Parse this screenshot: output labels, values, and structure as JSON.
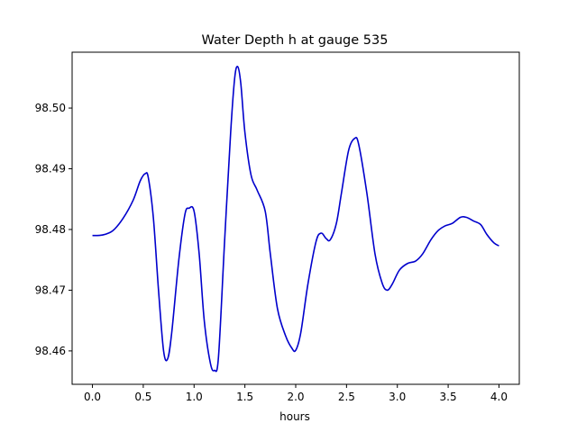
{
  "chart_data": {
    "type": "line",
    "title": "Water Depth h at gauge 535",
    "xlabel": "hours",
    "ylabel": "",
    "xlim": [
      -0.2,
      4.2
    ],
    "ylim": [
      98.4545,
      98.5092
    ],
    "grid": false,
    "legend": "none",
    "x_ticks": [
      {
        "value": 0.0,
        "label": "0.0"
      },
      {
        "value": 0.5,
        "label": "0.5"
      },
      {
        "value": 1.0,
        "label": "1.0"
      },
      {
        "value": 1.5,
        "label": "1.5"
      },
      {
        "value": 2.0,
        "label": "2.0"
      },
      {
        "value": 2.5,
        "label": "2.5"
      },
      {
        "value": 3.0,
        "label": "3.0"
      },
      {
        "value": 3.5,
        "label": "3.5"
      },
      {
        "value": 4.0,
        "label": "4.0"
      }
    ],
    "y_ticks": [
      {
        "value": 98.46,
        "label": "98.46"
      },
      {
        "value": 98.47,
        "label": "98.47"
      },
      {
        "value": 98.48,
        "label": "98.48"
      },
      {
        "value": 98.49,
        "label": "98.49"
      },
      {
        "value": 98.5,
        "label": "98.50"
      }
    ],
    "series": [
      {
        "color": "#0000cc",
        "points": [
          [
            0.0,
            98.479
          ],
          [
            0.1,
            98.4791
          ],
          [
            0.2,
            98.4798
          ],
          [
            0.3,
            98.4818
          ],
          [
            0.4,
            98.4848
          ],
          [
            0.47,
            98.488
          ],
          [
            0.52,
            98.4892
          ],
          [
            0.55,
            98.4885
          ],
          [
            0.6,
            98.4818
          ],
          [
            0.65,
            98.47
          ],
          [
            0.7,
            98.46
          ],
          [
            0.74,
            98.4587
          ],
          [
            0.78,
            98.463
          ],
          [
            0.85,
            98.475
          ],
          [
            0.91,
            98.4825
          ],
          [
            0.95,
            98.4835
          ],
          [
            1.0,
            98.483
          ],
          [
            1.05,
            98.476
          ],
          [
            1.1,
            98.465
          ],
          [
            1.16,
            98.458
          ],
          [
            1.2,
            98.4568
          ],
          [
            1.24,
            98.459
          ],
          [
            1.3,
            98.478
          ],
          [
            1.36,
            98.496
          ],
          [
            1.4,
            98.505
          ],
          [
            1.43,
            98.5068
          ],
          [
            1.46,
            98.504
          ],
          [
            1.5,
            98.496
          ],
          [
            1.56,
            98.489
          ],
          [
            1.62,
            98.4865
          ],
          [
            1.7,
            98.483
          ],
          [
            1.75,
            98.476
          ],
          [
            1.82,
            98.467
          ],
          [
            1.9,
            98.4625
          ],
          [
            1.96,
            98.4605
          ],
          [
            2.0,
            98.4601
          ],
          [
            2.05,
            98.463
          ],
          [
            2.12,
            98.471
          ],
          [
            2.2,
            98.478
          ],
          [
            2.25,
            98.4794
          ],
          [
            2.3,
            98.4785
          ],
          [
            2.34,
            98.4783
          ],
          [
            2.4,
            98.481
          ],
          [
            2.45,
            98.486
          ],
          [
            2.52,
            98.493
          ],
          [
            2.58,
            98.495
          ],
          [
            2.62,
            98.494
          ],
          [
            2.7,
            98.486
          ],
          [
            2.78,
            98.476
          ],
          [
            2.85,
            98.4712
          ],
          [
            2.9,
            98.47
          ],
          [
            2.95,
            98.471
          ],
          [
            3.02,
            98.4733
          ],
          [
            3.1,
            98.4744
          ],
          [
            3.18,
            98.4748
          ],
          [
            3.25,
            98.476
          ],
          [
            3.33,
            98.4783
          ],
          [
            3.4,
            98.4798
          ],
          [
            3.47,
            98.4806
          ],
          [
            3.54,
            98.481
          ],
          [
            3.62,
            98.482
          ],
          [
            3.68,
            98.482
          ],
          [
            3.75,
            98.4814
          ],
          [
            3.82,
            98.4808
          ],
          [
            3.88,
            98.4792
          ],
          [
            3.95,
            98.4778
          ],
          [
            4.0,
            98.4773
          ]
        ]
      }
    ]
  }
}
